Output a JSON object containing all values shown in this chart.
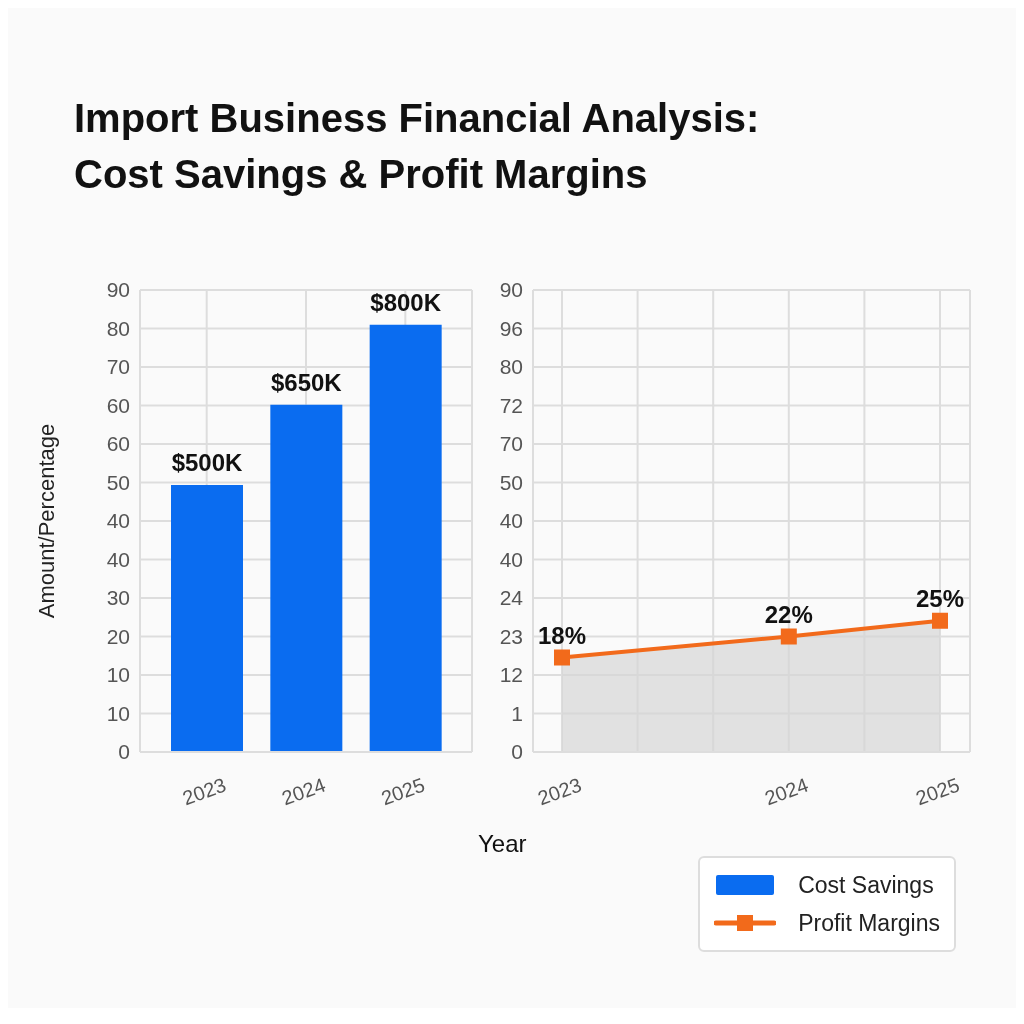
{
  "chart_data": [
    {
      "type": "bar",
      "title": "Import Business Financial Analysis: Cost Savings & Profit Margins",
      "ylabel": "Amount/Percentage",
      "categories": [
        "2023",
        "2024",
        "2025"
      ],
      "series": [
        {
          "name": "Cost Savings",
          "color": "#0a6cf0",
          "values": [
            500,
            650,
            800
          ],
          "value_labels": [
            "$500K",
            "$650K",
            "$800K"
          ]
        }
      ],
      "ylim": [
        0,
        865
      ],
      "annotations": [
        "0",
        "10",
        "10",
        "20",
        "30",
        "40",
        "40",
        "50",
        "60",
        "60",
        "70",
        "80",
        "90"
      ],
      "grid": true,
      "legend": "bottom right"
    },
    {
      "type": "area",
      "xlabel": "Year",
      "categories": [
        "2023",
        null,
        null,
        "2024",
        null,
        "2025"
      ],
      "series": [
        {
          "name": "Profit Margins",
          "color": "#f26a1b",
          "values": [
            18,
            null,
            null,
            22,
            null,
            25
          ],
          "value_labels": [
            "18%",
            null,
            null,
            "22%",
            null,
            "25%"
          ]
        }
      ],
      "ylim": [
        0,
        88
      ],
      "annotations": [
        "0",
        "1",
        "12",
        "23",
        "24",
        "40",
        "40",
        "50",
        "70",
        "72",
        "80",
        "96",
        "90"
      ],
      "grid": true,
      "marker": "square",
      "legend": "bottom right"
    }
  ]
}
